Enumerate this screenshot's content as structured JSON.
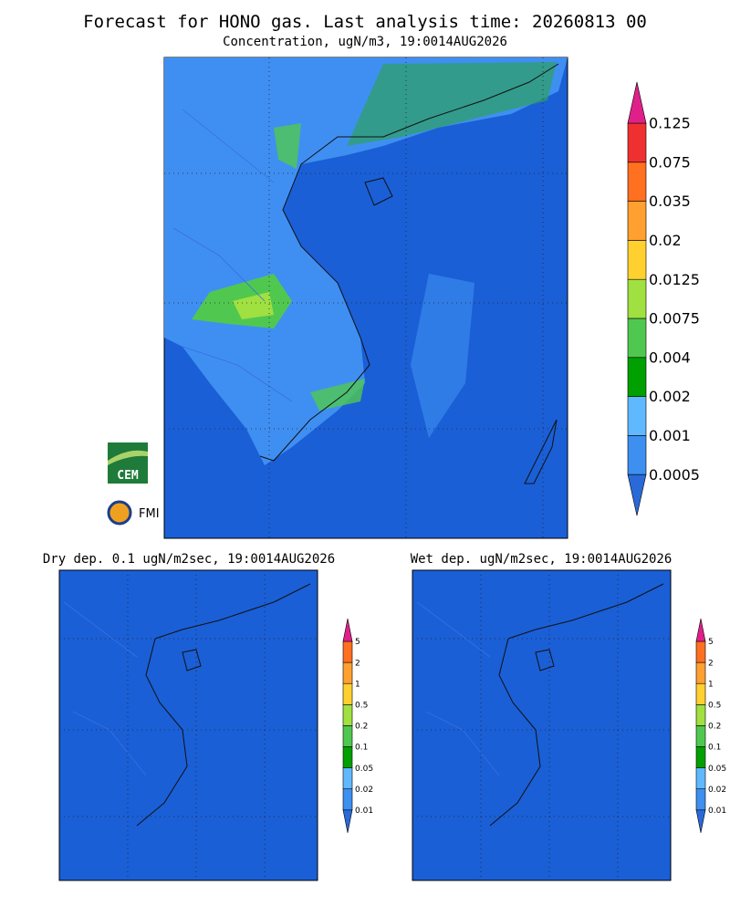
{
  "header": {
    "title": "Forecast for HONO gas. Last analysis time: 20260813 00",
    "subtitle": "Concentration, ugN/m3, 19:0014AUG2026"
  },
  "main_legend": {
    "labels": [
      "0.125",
      "0.075",
      "0.035",
      "0.02",
      "0.0125",
      "0.0075",
      "0.004",
      "0.002",
      "0.001",
      "0.0005"
    ],
    "colors": [
      "#2a6ad8",
      "#3d8ff0",
      "#60b8ff",
      "#00a000",
      "#50c850",
      "#a0e040",
      "#ffd030",
      "#ffa030",
      "#ff7020",
      "#f03030",
      "#e0208a"
    ]
  },
  "logos": [
    "CEM",
    "FMI"
  ],
  "panels": [
    {
      "title": "Dry dep. 0.1 ugN/m2sec, 19:0014AUG2026",
      "labels": [
        "5",
        "2",
        "1",
        "0.5",
        "0.2",
        "0.1",
        "0.05",
        "0.02",
        "0.01"
      ]
    },
    {
      "title": "Wet dep. ugN/m2sec, 19:0014AUG2026",
      "labels": [
        "5",
        "2",
        "1",
        "0.5",
        "0.2",
        "0.1",
        "0.05",
        "0.02",
        "0.01"
      ]
    }
  ]
}
